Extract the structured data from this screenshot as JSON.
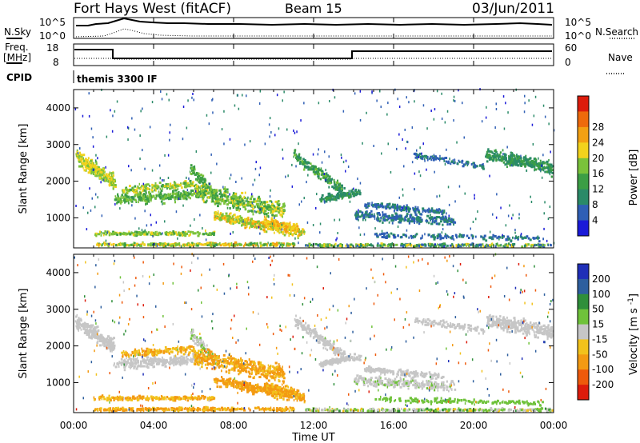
{
  "header": {
    "title": "Fort Hays West (fitACF)",
    "beam": "Beam 15",
    "date": "03/Jun/2011"
  },
  "top_panels": {
    "nsky_label": "N.Sky",
    "nsky_ticks": [
      "10^5",
      "10^0"
    ],
    "nsearch_label": "N.Search",
    "nsearch_ticks": [
      "10^5",
      "10^0"
    ],
    "freq_label": "Freq.",
    "freq_unit": "[MHz]",
    "freq_ticks": [
      "18",
      "8"
    ],
    "nave_label": "Nave",
    "nave_ticks": [
      "60",
      "0"
    ],
    "cpid_label": "CPID",
    "cpid_value": "themis 3300 IF"
  },
  "chart_data": [
    {
      "type": "heatmap",
      "xlabel": "",
      "ylabel": "Slant Range [km]",
      "x_range_hours": [
        0,
        24
      ],
      "ylim": [
        180,
        4500
      ],
      "ytick_labels": [
        "1000",
        "2000",
        "3000",
        "4000"
      ],
      "colorbar": {
        "label": "Power [dB]",
        "tick_labels": [
          "4",
          "8",
          "12",
          "16",
          "20",
          "24",
          "28"
        ],
        "colors": [
          "#1a1ad8",
          "#2f5fb5",
          "#2a8a68",
          "#3c9e45",
          "#7ac23a",
          "#f2d21c",
          "#f3a012",
          "#ee6a0c",
          "#dd1c0c"
        ]
      }
    },
    {
      "type": "heatmap",
      "xlabel": "Time UT",
      "ylabel": "Slant Range [km]",
      "x_range_hours": [
        0,
        24
      ],
      "xtick_labels": [
        "00:00",
        "04:00",
        "08:00",
        "12:00",
        "16:00",
        "20:00",
        "00:00"
      ],
      "ylim": [
        180,
        4500
      ],
      "ytick_labels": [
        "1000",
        "2000",
        "3000",
        "4000"
      ],
      "colorbar": {
        "label": "Velocity [m s^-1]",
        "tick_labels": [
          "200",
          "100",
          "50",
          "15",
          "-15",
          "-50",
          "-100",
          "-200"
        ],
        "colors": [
          "#1f2fb8",
          "#2e5f9e",
          "#2f8f3a",
          "#6fc23a",
          "#c6c6c6",
          "#f2c21c",
          "#f39a12",
          "#ee5a0c",
          "#dd1c0c"
        ]
      }
    }
  ]
}
